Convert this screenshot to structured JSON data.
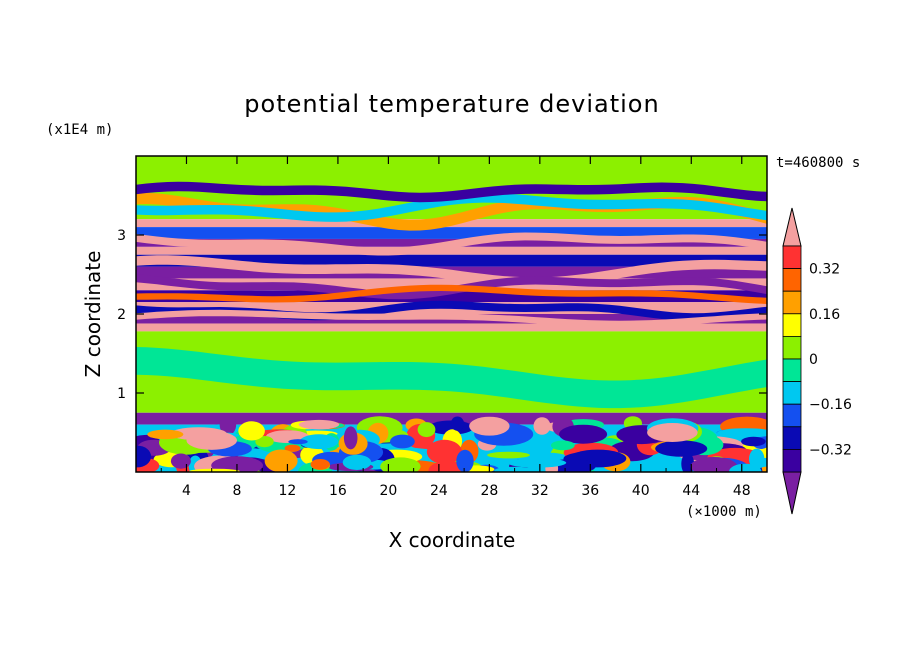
{
  "chart_data": {
    "type": "heatmap",
    "title": "potential temperature deviation",
    "xlabel": "X coordinate",
    "ylabel": "Z coordinate",
    "x_unit": "(×1000 m)",
    "y_unit": "(x1E4 m)",
    "time_label": "t=460800 s",
    "xlim": [
      0,
      50
    ],
    "ylim": [
      0,
      4
    ],
    "x_ticks": [
      "4",
      "8",
      "12",
      "16",
      "20",
      "24",
      "28",
      "32",
      "36",
      "40",
      "44",
      "48"
    ],
    "y_ticks": [
      "1",
      "2",
      "3"
    ],
    "colorbar": {
      "levels": [
        -0.48,
        -0.4,
        -0.32,
        -0.24,
        -0.16,
        -0.08,
        0,
        0.08,
        0.16,
        0.24,
        0.32,
        0.4
      ],
      "tick_labels": [
        "0.32",
        "0.16",
        "0",
        "−0.16",
        "−0.32"
      ],
      "colors": [
        "#7a1fa2",
        "#3a00a0",
        "#0a0ab4",
        "#1450f0",
        "#00c8f0",
        "#00e696",
        "#8cf000",
        "#ffff00",
        "#ffa000",
        "#ff6400",
        "#ff3232",
        "#f4a0a0"
      ]
    },
    "bands": [
      {
        "z": [
          3.95,
          3.2
        ],
        "level": 0.04
      },
      {
        "z": [
          3.2,
          3.1
        ],
        "level": 0.42
      },
      {
        "z": [
          3.1,
          2.95
        ],
        "level": -0.2
      },
      {
        "z": [
          2.95,
          2.85
        ],
        "level": -0.44
      },
      {
        "z": [
          2.85,
          2.75
        ],
        "level": 0.42
      },
      {
        "z": [
          2.75,
          2.6
        ],
        "level": -0.3
      },
      {
        "z": [
          2.6,
          2.45
        ],
        "level": -0.46
      },
      {
        "z": [
          2.45,
          2.3
        ],
        "level": 0.42
      },
      {
        "z": [
          2.3,
          2.15
        ],
        "level": -0.38
      },
      {
        "z": [
          2.15,
          2.0
        ],
        "level": 0.42
      },
      {
        "z": [
          2.0,
          1.88
        ],
        "level": -0.46
      },
      {
        "z": [
          1.88,
          1.78
        ],
        "level": 0.42
      },
      {
        "z": [
          1.78,
          0.75
        ],
        "level": 0.04
      },
      {
        "z": [
          0.75,
          0.6
        ],
        "level": -0.44
      },
      {
        "z": [
          0.6,
          0.0
        ],
        "level": -0.1
      }
    ]
  }
}
